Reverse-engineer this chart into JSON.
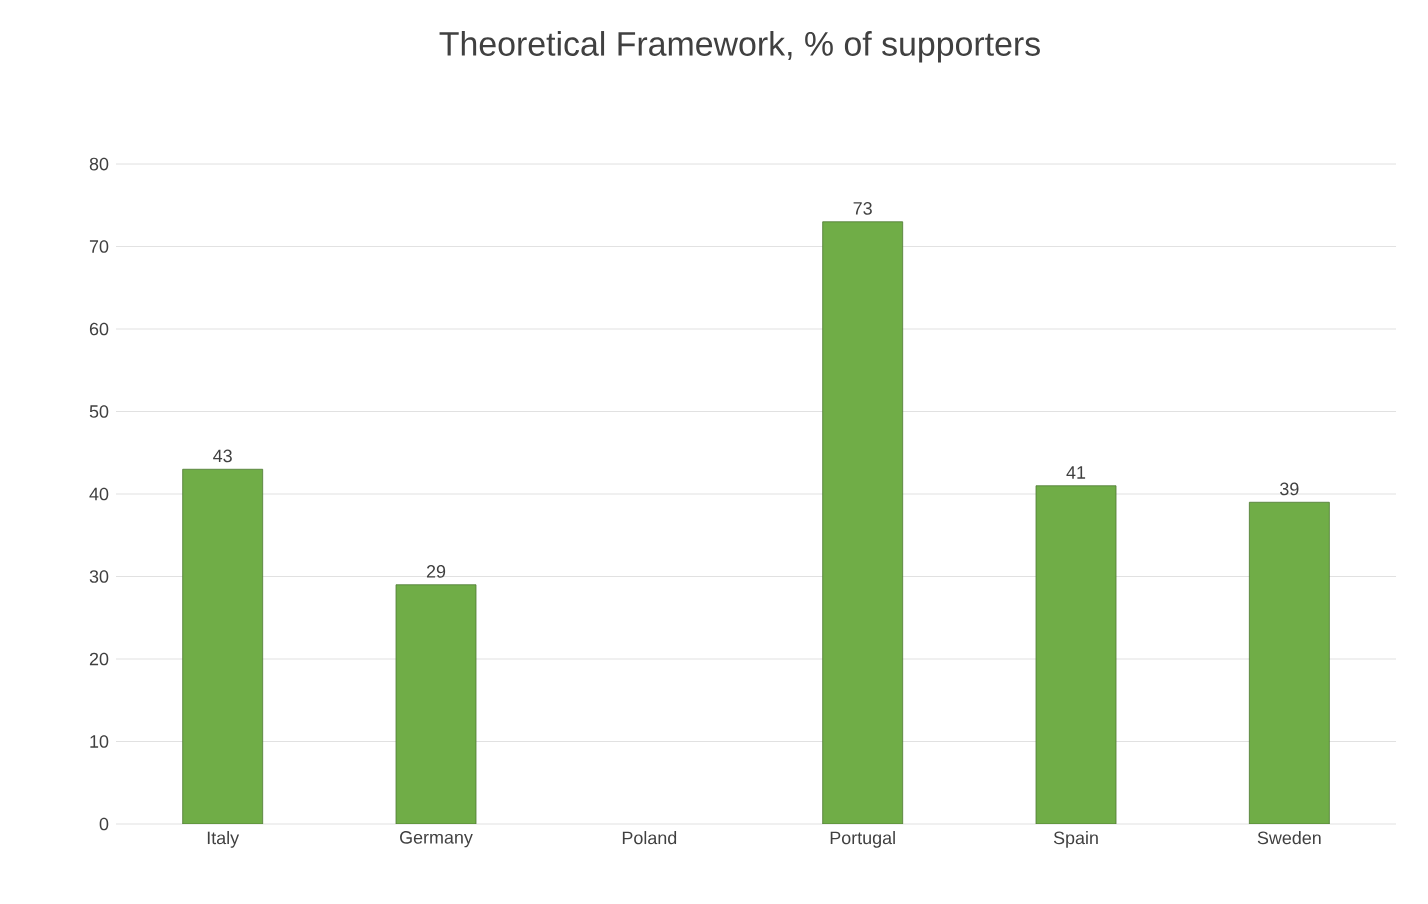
{
  "chart_data": {
    "type": "bar",
    "title": "Theoretical Framework, % of supporters",
    "categories": [
      "Italy",
      "Germany",
      "Poland",
      "Portugal",
      "Spain",
      "Sweden"
    ],
    "values": [
      43,
      29,
      null,
      73,
      41,
      39
    ],
    "color": "#70ad47",
    "ylim": [
      0,
      80
    ],
    "yticks": [
      0,
      10,
      20,
      30,
      40,
      50,
      60,
      70,
      80
    ],
    "grid": "y",
    "data_labels": true
  }
}
